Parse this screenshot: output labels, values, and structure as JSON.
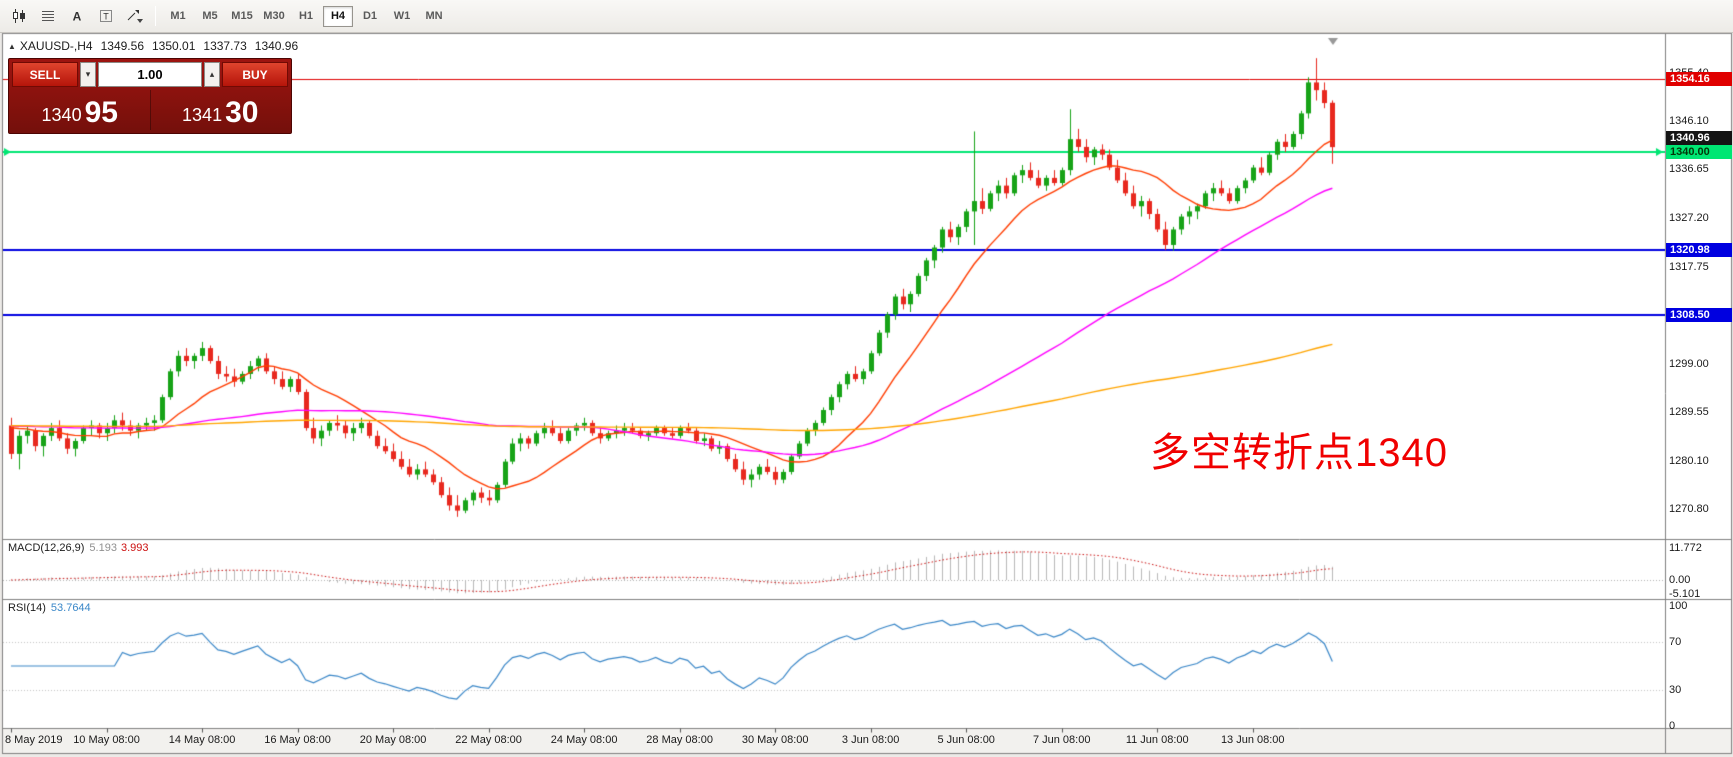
{
  "toolbar": {
    "icons": [
      {
        "name": "candlestick-style-icon"
      },
      {
        "name": "chart-grid-icon"
      },
      {
        "name": "text-label-tool-icon"
      },
      {
        "name": "text-box-tool-icon"
      },
      {
        "name": "drawing-tools-icon"
      }
    ],
    "timeframes": [
      {
        "label": "M1",
        "active": false
      },
      {
        "label": "M5",
        "active": false
      },
      {
        "label": "M15",
        "active": false
      },
      {
        "label": "M30",
        "active": false
      },
      {
        "label": "H1",
        "active": false
      },
      {
        "label": "H4",
        "active": true
      },
      {
        "label": "D1",
        "active": false
      },
      {
        "label": "W1",
        "active": false
      },
      {
        "label": "MN",
        "active": false
      }
    ]
  },
  "chart": {
    "header": {
      "symbol_period": "XAUUSD-,H4",
      "open": "1349.56",
      "high": "1350.01",
      "low": "1337.73",
      "close": "1340.96"
    },
    "trade_panel": {
      "sell_label": "SELL",
      "buy_label": "BUY",
      "volume": "1.00",
      "bid_main": "1340",
      "bid_pips": "95",
      "ask_main": "1341",
      "ask_pips": "30"
    },
    "annotation": {
      "text": "多空转折点1340",
      "color": "#f00000"
    },
    "colors": {
      "bull": "#17a317",
      "bear": "#e8281e",
      "bg": "#ffffff",
      "frame": "#808080",
      "axis_bg": "#f2f1ee",
      "ma_fast": "#ff3c00",
      "ma_mid": "#ff00ff",
      "ma_slow": "#ffa500"
    },
    "hlines": [
      {
        "v": 1354.16,
        "color": "#e00000",
        "w": 1,
        "arrows": false
      },
      {
        "v": 1340.0,
        "color": "#00e673",
        "w": 2,
        "arrows": true
      },
      {
        "v": 1320.98,
        "color": "#0000e0",
        "w": 2,
        "arrows": false
      },
      {
        "v": 1308.5,
        "color": "#0000e0",
        "w": 2,
        "arrows": false
      }
    ],
    "price_scale": {
      "ticks": [
        {
          "label": "1355.40",
          "v": 1355.4
        },
        {
          "label": "1346.10",
          "v": 1346.1
        },
        {
          "label": "1336.65",
          "v": 1336.65
        },
        {
          "label": "1327.20",
          "v": 1327.2
        },
        {
          "label": "1317.75",
          "v": 1317.75
        },
        {
          "label": "1299.00",
          "v": 1299.0
        },
        {
          "label": "1289.55",
          "v": 1289.55
        },
        {
          "label": "1280.10",
          "v": 1280.1
        },
        {
          "label": "1270.80",
          "v": 1270.8
        }
      ],
      "badges": [
        {
          "label": "1354.16",
          "v": 1354.16,
          "bg": "#e00000",
          "fg": "#ffffff",
          "dy": 0
        },
        {
          "label": "1340.96",
          "v": 1340.96,
          "bg": "#141414",
          "fg": "#ffffff",
          "dy": -9
        },
        {
          "label": "1340.00",
          "v": 1340.0,
          "bg": "#00e673",
          "fg": "#053508",
          "dy": 0
        },
        {
          "label": "1320.98",
          "v": 1320.98,
          "bg": "#0000e0",
          "fg": "#ffffff",
          "dy": 0
        },
        {
          "label": "1308.50",
          "v": 1308.5,
          "bg": "#0000e0",
          "fg": "#ffffff",
          "dy": 0
        }
      ]
    },
    "time_axis": {
      "labels": [
        "8 May 2019",
        "10 May 08:00",
        "14 May 08:00",
        "16 May 08:00",
        "20 May 08:00",
        "22 May 08:00",
        "24 May 08:00",
        "28 May 08:00",
        "30 May 08:00",
        "3 Jun 08:00",
        "5 Jun 08:00",
        "7 Jun 08:00",
        "11 Jun 08:00",
        "13 Jun 08:00"
      ]
    }
  },
  "chart_data": {
    "type": "candlestick",
    "title": "XAUUSD H4",
    "y_range": [
      1265,
      1362.5
    ],
    "x_tick_interval_candles": 12,
    "ohlc": [
      [
        1287,
        1288.5,
        1280.5,
        1281.5
      ],
      [
        1281.5,
        1286,
        1278.5,
        1285
      ],
      [
        1285,
        1287,
        1283.5,
        1286
      ],
      [
        1286,
        1286.5,
        1282,
        1283
      ],
      [
        1283,
        1285.5,
        1281,
        1285
      ],
      [
        1285,
        1287.5,
        1284,
        1286.5
      ],
      [
        1286.5,
        1288,
        1284,
        1284.5
      ],
      [
        1284.5,
        1285.5,
        1281.5,
        1282.5
      ],
      [
        1282.5,
        1284.5,
        1281,
        1284
      ],
      [
        1284,
        1287,
        1283.5,
        1286.5
      ],
      [
        1286.5,
        1288,
        1285,
        1287
      ],
      [
        1287,
        1287.5,
        1284.5,
        1285.5
      ],
      [
        1285.5,
        1287.5,
        1284,
        1286.5
      ],
      [
        1286.5,
        1289,
        1285.5,
        1288
      ],
      [
        1288,
        1289.5,
        1286,
        1287
      ],
      [
        1287,
        1288,
        1285,
        1286
      ],
      [
        1286,
        1287.5,
        1284.5,
        1287
      ],
      [
        1287,
        1288.5,
        1286,
        1287.5
      ],
      [
        1287.5,
        1289,
        1286,
        1288
      ],
      [
        1288,
        1293,
        1287.5,
        1292.5
      ],
      [
        1292.5,
        1298,
        1292,
        1297.5
      ],
      [
        1297.5,
        1301.5,
        1296.5,
        1300.5
      ],
      [
        1300.5,
        1302,
        1298.5,
        1299.5
      ],
      [
        1299.5,
        1301,
        1298,
        1300.5
      ],
      [
        1300.5,
        1303.2,
        1299.5,
        1302
      ],
      [
        1302,
        1302.5,
        1299,
        1299.5
      ],
      [
        1299.5,
        1300.5,
        1296,
        1297
      ],
      [
        1297,
        1298.5,
        1295.5,
        1296.5
      ],
      [
        1296.5,
        1298,
        1294.5,
        1295.5
      ],
      [
        1295.5,
        1297.5,
        1295,
        1297
      ],
      [
        1297,
        1299.5,
        1296,
        1298.5
      ],
      [
        1298.5,
        1300.5,
        1297.5,
        1300
      ],
      [
        1300,
        1301,
        1297,
        1297.5
      ],
      [
        1297.5,
        1298.5,
        1295,
        1296
      ],
      [
        1296,
        1297.5,
        1294,
        1294.5
      ],
      [
        1294.5,
        1296.5,
        1293.5,
        1296
      ],
      [
        1296,
        1297,
        1293,
        1293.5
      ],
      [
        1293.5,
        1294,
        1286,
        1286.5
      ],
      [
        1286.5,
        1288.5,
        1283.5,
        1284.5
      ],
      [
        1284.5,
        1287,
        1283,
        1286
      ],
      [
        1286,
        1288,
        1285,
        1287.5
      ],
      [
        1287.5,
        1289,
        1286,
        1287
      ],
      [
        1287,
        1288,
        1284.5,
        1285.5
      ],
      [
        1285.5,
        1287.5,
        1284,
        1286.5
      ],
      [
        1286.5,
        1288.5,
        1285.5,
        1287.5
      ],
      [
        1287.5,
        1288,
        1284.5,
        1285
      ],
      [
        1285,
        1286,
        1282.5,
        1283
      ],
      [
        1283,
        1284.5,
        1281.5,
        1282
      ],
      [
        1282,
        1283.5,
        1280,
        1280.5
      ],
      [
        1280.5,
        1282,
        1278.5,
        1279
      ],
      [
        1279,
        1280.5,
        1277,
        1277.5
      ],
      [
        1277.5,
        1279.5,
        1276.5,
        1278.5
      ],
      [
        1278.5,
        1280,
        1277,
        1277.5
      ],
      [
        1277.5,
        1278.5,
        1275.5,
        1276
      ],
      [
        1276,
        1277,
        1273,
        1273.5
      ],
      [
        1273.5,
        1275,
        1270.5,
        1271.5
      ],
      [
        1271.5,
        1273.5,
        1269.3,
        1270.5
      ],
      [
        1270.5,
        1273,
        1270,
        1272.5
      ],
      [
        1272.5,
        1274.5,
        1271.5,
        1274
      ],
      [
        1274,
        1275,
        1272,
        1273
      ],
      [
        1273,
        1274.5,
        1271.5,
        1272.5
      ],
      [
        1272.5,
        1276,
        1272,
        1275.5
      ],
      [
        1275.5,
        1280.5,
        1275,
        1280
      ],
      [
        1280,
        1284.5,
        1279.5,
        1283.5
      ],
      [
        1283.5,
        1285.5,
        1282,
        1284.5
      ],
      [
        1284.5,
        1285,
        1282.5,
        1283.5
      ],
      [
        1283.5,
        1286,
        1283,
        1285.5
      ],
      [
        1285.5,
        1287.5,
        1284.5,
        1286.5
      ],
      [
        1286.5,
        1288,
        1285,
        1285.5
      ],
      [
        1285.5,
        1286.5,
        1283.5,
        1284
      ],
      [
        1284,
        1286.5,
        1283.5,
        1286
      ],
      [
        1286,
        1287.5,
        1285,
        1287
      ],
      [
        1287,
        1288.5,
        1286,
        1287.5
      ],
      [
        1287.5,
        1288,
        1285,
        1285.5
      ],
      [
        1285.5,
        1286.5,
        1283.5,
        1284.5
      ],
      [
        1284.5,
        1286,
        1284,
        1285.5
      ],
      [
        1285.5,
        1287,
        1284.5,
        1286
      ],
      [
        1286,
        1287.5,
        1285,
        1286.5
      ],
      [
        1286.5,
        1287.5,
        1285.5,
        1286
      ],
      [
        1286,
        1286.5,
        1284.5,
        1285
      ],
      [
        1285,
        1286,
        1284,
        1285.5
      ],
      [
        1285.5,
        1287,
        1285,
        1286.5
      ],
      [
        1286.5,
        1287,
        1285,
        1285.5
      ],
      [
        1285.5,
        1286.5,
        1284.5,
        1285
      ],
      [
        1285,
        1287,
        1284.5,
        1286.5
      ],
      [
        1286.5,
        1287.5,
        1285.5,
        1286
      ],
      [
        1286,
        1286.5,
        1283.5,
        1284
      ],
      [
        1284,
        1285.5,
        1283,
        1284.5
      ],
      [
        1284.5,
        1285,
        1282,
        1282.5
      ],
      [
        1282.5,
        1284,
        1281.5,
        1283
      ],
      [
        1283,
        1283.5,
        1280,
        1280.5
      ],
      [
        1280.5,
        1281.5,
        1278,
        1278.5
      ],
      [
        1278.5,
        1280,
        1275.5,
        1276.5
      ],
      [
        1276.5,
        1278.5,
        1275,
        1277.5
      ],
      [
        1277.5,
        1279.5,
        1276.5,
        1279
      ],
      [
        1279,
        1280.5,
        1277.5,
        1278
      ],
      [
        1278,
        1279,
        1275.5,
        1276.5
      ],
      [
        1276.5,
        1278.5,
        1275.8,
        1278
      ],
      [
        1278,
        1281.5,
        1277.5,
        1281
      ],
      [
        1281,
        1284,
        1280.5,
        1283.5
      ],
      [
        1283.5,
        1286.5,
        1283,
        1286
      ],
      [
        1286,
        1288,
        1285,
        1287.5
      ],
      [
        1287.5,
        1290.5,
        1287,
        1290
      ],
      [
        1290,
        1293,
        1289,
        1292.5
      ],
      [
        1292.5,
        1295.5,
        1291.5,
        1295
      ],
      [
        1295,
        1297.5,
        1294,
        1297
      ],
      [
        1297,
        1298.5,
        1295.5,
        1296
      ],
      [
        1296,
        1298,
        1295,
        1297.5
      ],
      [
        1297.5,
        1301.5,
        1297,
        1301
      ],
      [
        1301,
        1305.5,
        1300.5,
        1305
      ],
      [
        1305,
        1309,
        1304,
        1308.5
      ],
      [
        1308.5,
        1312.5,
        1307.5,
        1312
      ],
      [
        1312,
        1313.5,
        1309.5,
        1310.5
      ],
      [
        1310.5,
        1313,
        1309,
        1312.5
      ],
      [
        1312.5,
        1316.5,
        1312,
        1316
      ],
      [
        1316,
        1319.5,
        1315,
        1319
      ],
      [
        1319,
        1322,
        1317.5,
        1321.5
      ],
      [
        1321.5,
        1325.5,
        1320.5,
        1325
      ],
      [
        1325,
        1326.5,
        1322.5,
        1323.5
      ],
      [
        1323.5,
        1326,
        1322,
        1325.5
      ],
      [
        1325.5,
        1329,
        1324.5,
        1328.5
      ],
      [
        1328.5,
        1344,
        1322,
        1330.5
      ],
      [
        1330.5,
        1333,
        1328,
        1329
      ],
      [
        1329,
        1332.5,
        1328.5,
        1332
      ],
      [
        1332,
        1334.5,
        1330.5,
        1333.5
      ],
      [
        1333.5,
        1335,
        1331,
        1332
      ],
      [
        1332,
        1336,
        1331.5,
        1335.5
      ],
      [
        1335.5,
        1337.5,
        1334,
        1336.5
      ],
      [
        1336.5,
        1338,
        1334.5,
        1335
      ],
      [
        1335,
        1336.5,
        1333,
        1333.5
      ],
      [
        1333.5,
        1335.5,
        1332.5,
        1335
      ],
      [
        1335,
        1336.5,
        1333.5,
        1334
      ],
      [
        1334,
        1337,
        1333.5,
        1336.5
      ],
      [
        1336.5,
        1348.3,
        1335.5,
        1342.5
      ],
      [
        1342.5,
        1344.5,
        1340,
        1341
      ],
      [
        1341,
        1342.5,
        1338,
        1339
      ],
      [
        1339,
        1341,
        1337.5,
        1340.5
      ],
      [
        1340.5,
        1341.5,
        1338.5,
        1339.5
      ],
      [
        1339.5,
        1340.5,
        1336.5,
        1337
      ],
      [
        1337,
        1338.5,
        1334,
        1334.5
      ],
      [
        1334.5,
        1336,
        1331.5,
        1332
      ],
      [
        1332,
        1333.5,
        1329,
        1329.5
      ],
      [
        1329.5,
        1331.5,
        1327.5,
        1330.5
      ],
      [
        1330.5,
        1331,
        1327,
        1328
      ],
      [
        1328,
        1329,
        1324.5,
        1325
      ],
      [
        1325,
        1326.5,
        1321,
        1322
      ],
      [
        1322,
        1325.5,
        1320.9,
        1325
      ],
      [
        1325,
        1328,
        1324,
        1327.5
      ],
      [
        1327.5,
        1329.5,
        1326,
        1328.5
      ],
      [
        1328.5,
        1330,
        1327,
        1329.5
      ],
      [
        1329.5,
        1332.5,
        1329,
        1332
      ],
      [
        1332,
        1334,
        1330.5,
        1333
      ],
      [
        1333,
        1334.5,
        1331.5,
        1332
      ],
      [
        1332,
        1333,
        1330,
        1330.5
      ],
      [
        1330.5,
        1333.5,
        1330,
        1333
      ],
      [
        1333,
        1335,
        1332,
        1334.5
      ],
      [
        1334.5,
        1337.5,
        1334,
        1337
      ],
      [
        1337,
        1339,
        1335.5,
        1336
      ],
      [
        1336,
        1340,
        1335.5,
        1339.5
      ],
      [
        1339.5,
        1342.5,
        1338.5,
        1342
      ],
      [
        1342,
        1343.5,
        1340,
        1341
      ],
      [
        1341,
        1344,
        1340.5,
        1343.5
      ],
      [
        1343.5,
        1348,
        1342.5,
        1347.5
      ],
      [
        1347.5,
        1354.5,
        1346.5,
        1353.5
      ],
      [
        1353.5,
        1358.2,
        1350,
        1352
      ],
      [
        1352,
        1353.5,
        1348.5,
        1349.5
      ],
      [
        1349.56,
        1350.01,
        1337.73,
        1340.96
      ]
    ],
    "moving_averages": [
      {
        "name": "MA-fast",
        "period": 13,
        "color": "#ff3c00"
      },
      {
        "name": "MA-mid",
        "period": 55,
        "color": "#ff00ff"
      },
      {
        "name": "MA-slow",
        "period": 160,
        "color": "#ffa500"
      }
    ],
    "indicators": {
      "macd": {
        "label": "MACD(12,26,9)",
        "value_main": "5.193",
        "value_signal": "3.993",
        "hist_color": "#b9b9b9",
        "signal_color": "#cc1111",
        "scale": [
          {
            "label": "11.772",
            "v": 11.772
          },
          {
            "label": "0.00",
            "v": 0
          },
          {
            "label": "-5.101",
            "v": -5.101
          }
        ]
      },
      "rsi": {
        "label": "RSI(14)",
        "value": "53.7644",
        "line_color": "#3a87c8",
        "scale": [
          {
            "label": "100",
            "v": 100
          },
          {
            "label": "70",
            "v": 70
          },
          {
            "label": "30",
            "v": 30
          },
          {
            "label": "0",
            "v": 0
          }
        ],
        "dotted_levels": [
          70,
          30
        ]
      }
    }
  }
}
